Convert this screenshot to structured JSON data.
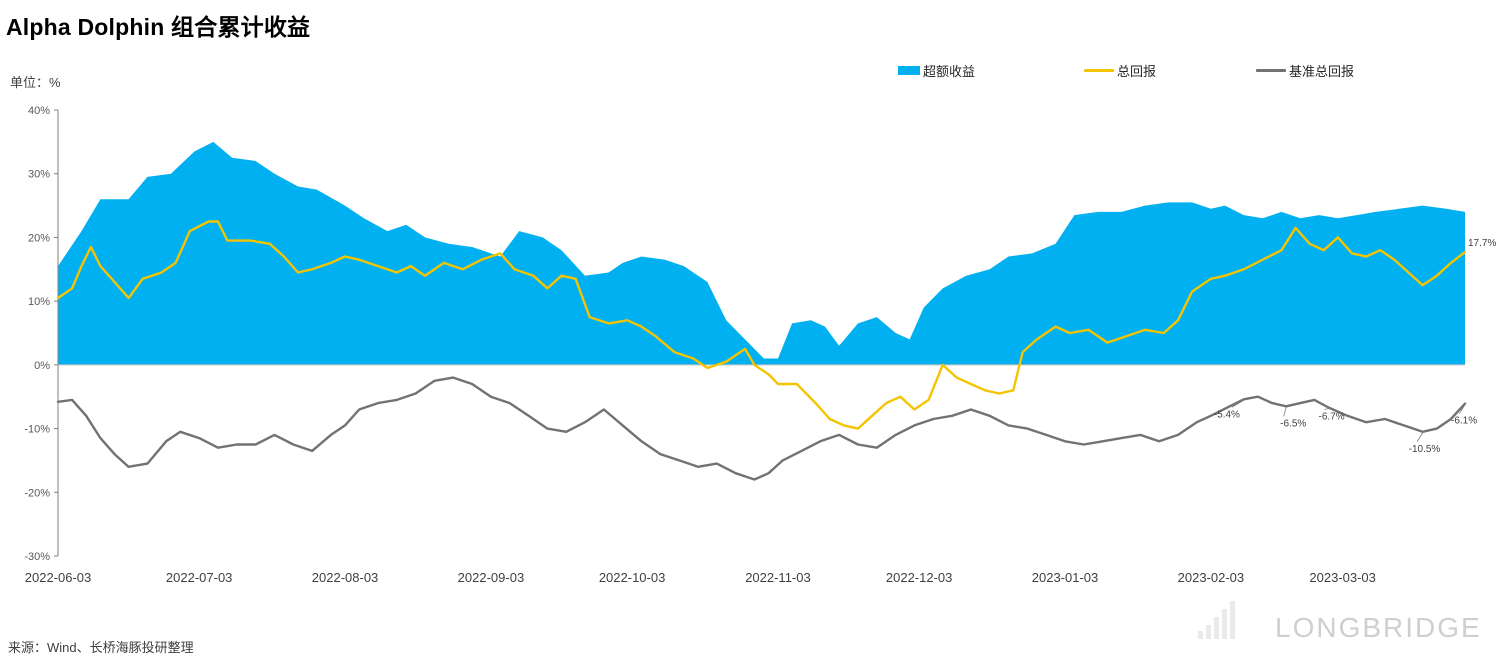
{
  "title": "Alpha Dolphin 组合累计收益",
  "unit_label": "单位：%",
  "source": "来源：Wind、长桥海豚投研整理",
  "watermark": {
    "brand": "LONGBRIDGE"
  },
  "legend": [
    {
      "label": "超额收益",
      "kind": "area",
      "color": "#00B0F0"
    },
    {
      "label": "总回报",
      "kind": "line",
      "color": "#F5C400"
    },
    {
      "label": "基准总回报",
      "kind": "line",
      "color": "#767171"
    }
  ],
  "chart_data": {
    "type": "line",
    "title": "Alpha Dolphin 组合累计收益",
    "xlabel": "",
    "ylabel": "单位：%",
    "ylim": [
      -30,
      40
    ],
    "y_ticks": [
      -30,
      -20,
      -10,
      0,
      10,
      20,
      30,
      40
    ],
    "y_tick_labels": [
      "-30%",
      "-20%",
      "-10%",
      "0%",
      "10%",
      "20%",
      "30%",
      "40%"
    ],
    "x_start": "2022-06-03",
    "x_end": "2023-03-29",
    "x_tick_labels": [
      "2022-06-03",
      "2022-07-03",
      "2022-08-03",
      "2022-09-03",
      "2022-10-03",
      "2022-11-03",
      "2022-12-03",
      "2023-01-03",
      "2023-02-03",
      "2023-03-03"
    ],
    "grid": false,
    "legend_position": "top-right",
    "series": [
      {
        "name": "超额收益",
        "kind": "area",
        "color": "#00B0F0",
        "points": [
          [
            "2022-06-03",
            15.5
          ],
          [
            "2022-06-08",
            21
          ],
          [
            "2022-06-12",
            26
          ],
          [
            "2022-06-18",
            26
          ],
          [
            "2022-06-22",
            29.5
          ],
          [
            "2022-06-27",
            30
          ],
          [
            "2022-07-02",
            33.5
          ],
          [
            "2022-07-06",
            35
          ],
          [
            "2022-07-10",
            32.5
          ],
          [
            "2022-07-15",
            32
          ],
          [
            "2022-07-19",
            30
          ],
          [
            "2022-07-24",
            28
          ],
          [
            "2022-07-28",
            27.5
          ],
          [
            "2022-08-03",
            25
          ],
          [
            "2022-08-07",
            23
          ],
          [
            "2022-08-12",
            21
          ],
          [
            "2022-08-16",
            22
          ],
          [
            "2022-08-20",
            20
          ],
          [
            "2022-08-25",
            19
          ],
          [
            "2022-08-30",
            18.5
          ],
          [
            "2022-09-05",
            17
          ],
          [
            "2022-09-09",
            21
          ],
          [
            "2022-09-14",
            20
          ],
          [
            "2022-09-18",
            18
          ],
          [
            "2022-09-23",
            14
          ],
          [
            "2022-09-28",
            14.5
          ],
          [
            "2022-10-01",
            16
          ],
          [
            "2022-10-05",
            17
          ],
          [
            "2022-10-10",
            16.5
          ],
          [
            "2022-10-14",
            15.5
          ],
          [
            "2022-10-19",
            13
          ],
          [
            "2022-10-23",
            7
          ],
          [
            "2022-10-27",
            4
          ],
          [
            "2022-10-31",
            1
          ],
          [
            "2022-11-03",
            1
          ],
          [
            "2022-11-06",
            6.5
          ],
          [
            "2022-11-10",
            7
          ],
          [
            "2022-11-13",
            6
          ],
          [
            "2022-11-16",
            3
          ],
          [
            "2022-11-20",
            6.5
          ],
          [
            "2022-11-24",
            7.5
          ],
          [
            "2022-11-28",
            5
          ],
          [
            "2022-12-01",
            4
          ],
          [
            "2022-12-04",
            9
          ],
          [
            "2022-12-08",
            12
          ],
          [
            "2022-12-13",
            14
          ],
          [
            "2022-12-18",
            15
          ],
          [
            "2022-12-22",
            17
          ],
          [
            "2022-12-27",
            17.5
          ],
          [
            "2023-01-01",
            19
          ],
          [
            "2023-01-05",
            23.5
          ],
          [
            "2023-01-10",
            24
          ],
          [
            "2023-01-15",
            24
          ],
          [
            "2023-01-20",
            25
          ],
          [
            "2023-01-25",
            25.5
          ],
          [
            "2023-01-30",
            25.5
          ],
          [
            "2023-02-03",
            24.5
          ],
          [
            "2023-02-06",
            25
          ],
          [
            "2023-02-10",
            23.5
          ],
          [
            "2023-02-14",
            23
          ],
          [
            "2023-02-18",
            24
          ],
          [
            "2023-02-22",
            23
          ],
          [
            "2023-02-26",
            23.5
          ],
          [
            "2023-03-02",
            23
          ],
          [
            "2023-03-06",
            23.5
          ],
          [
            "2023-03-10",
            24
          ],
          [
            "2023-03-15",
            24.5
          ],
          [
            "2023-03-20",
            25
          ],
          [
            "2023-03-25",
            24.5
          ],
          [
            "2023-03-29",
            24
          ]
        ]
      },
      {
        "name": "总回报",
        "kind": "line",
        "color": "#F5C400",
        "end_label": "17.7%",
        "points": [
          [
            "2022-06-03",
            10.5
          ],
          [
            "2022-06-06",
            12
          ],
          [
            "2022-06-08",
            15.5
          ],
          [
            "2022-06-10",
            18.5
          ],
          [
            "2022-06-12",
            15.5
          ],
          [
            "2022-06-15",
            13
          ],
          [
            "2022-06-18",
            10.5
          ],
          [
            "2022-06-21",
            13.5
          ],
          [
            "2022-06-25",
            14.5
          ],
          [
            "2022-06-28",
            16
          ],
          [
            "2022-07-01",
            21
          ],
          [
            "2022-07-05",
            22.5
          ],
          [
            "2022-07-07",
            22.5
          ],
          [
            "2022-07-09",
            19.5
          ],
          [
            "2022-07-14",
            19.5
          ],
          [
            "2022-07-18",
            19
          ],
          [
            "2022-07-21",
            17
          ],
          [
            "2022-07-24",
            14.5
          ],
          [
            "2022-07-27",
            15
          ],
          [
            "2022-07-31",
            16
          ],
          [
            "2022-08-03",
            17
          ],
          [
            "2022-08-06",
            16.5
          ],
          [
            "2022-08-10",
            15.5
          ],
          [
            "2022-08-14",
            14.5
          ],
          [
            "2022-08-17",
            15.5
          ],
          [
            "2022-08-20",
            14
          ],
          [
            "2022-08-24",
            16
          ],
          [
            "2022-08-28",
            15
          ],
          [
            "2022-09-01",
            16.5
          ],
          [
            "2022-09-05",
            17.5
          ],
          [
            "2022-09-08",
            15
          ],
          [
            "2022-09-12",
            14
          ],
          [
            "2022-09-15",
            12
          ],
          [
            "2022-09-18",
            14
          ],
          [
            "2022-09-21",
            13.5
          ],
          [
            "2022-09-24",
            7.5
          ],
          [
            "2022-09-28",
            6.5
          ],
          [
            "2022-10-02",
            7
          ],
          [
            "2022-10-05",
            6
          ],
          [
            "2022-10-08",
            4.5
          ],
          [
            "2022-10-12",
            2
          ],
          [
            "2022-10-16",
            1
          ],
          [
            "2022-10-19",
            -0.5
          ],
          [
            "2022-10-23",
            0.5
          ],
          [
            "2022-10-27",
            2.5
          ],
          [
            "2022-10-29",
            0
          ],
          [
            "2022-11-01",
            -1.5
          ],
          [
            "2022-11-03",
            -3
          ],
          [
            "2022-11-07",
            -3
          ],
          [
            "2022-11-11",
            -6
          ],
          [
            "2022-11-14",
            -8.5
          ],
          [
            "2022-11-17",
            -9.5
          ],
          [
            "2022-11-20",
            -10
          ],
          [
            "2022-11-23",
            -8
          ],
          [
            "2022-11-26",
            -6
          ],
          [
            "2022-11-29",
            -5
          ],
          [
            "2022-12-02",
            -7
          ],
          [
            "2022-12-05",
            -5.5
          ],
          [
            "2022-12-08",
            0
          ],
          [
            "2022-12-11",
            -2
          ],
          [
            "2022-12-14",
            -3
          ],
          [
            "2022-12-17",
            -4
          ],
          [
            "2022-12-20",
            -4.5
          ],
          [
            "2022-12-23",
            -4
          ],
          [
            "2022-12-25",
            2
          ],
          [
            "2022-12-28",
            4
          ],
          [
            "2023-01-01",
            6
          ],
          [
            "2023-01-04",
            5
          ],
          [
            "2023-01-08",
            5.5
          ],
          [
            "2023-01-12",
            3.5
          ],
          [
            "2023-01-16",
            4.5
          ],
          [
            "2023-01-20",
            5.5
          ],
          [
            "2023-01-24",
            5
          ],
          [
            "2023-01-27",
            7
          ],
          [
            "2023-01-30",
            11.5
          ],
          [
            "2023-02-03",
            13.5
          ],
          [
            "2023-02-06",
            14
          ],
          [
            "2023-02-10",
            15
          ],
          [
            "2023-02-14",
            16.5
          ],
          [
            "2023-02-18",
            18
          ],
          [
            "2023-02-21",
            21.5
          ],
          [
            "2023-02-24",
            19
          ],
          [
            "2023-02-27",
            18
          ],
          [
            "2023-03-02",
            20
          ],
          [
            "2023-03-05",
            17.5
          ],
          [
            "2023-03-08",
            17
          ],
          [
            "2023-03-11",
            18
          ],
          [
            "2023-03-14",
            16.5
          ],
          [
            "2023-03-17",
            14.5
          ],
          [
            "2023-03-20",
            12.5
          ],
          [
            "2023-03-23",
            14
          ],
          [
            "2023-03-26",
            16
          ],
          [
            "2023-03-29",
            17.7
          ]
        ]
      },
      {
        "name": "基准总回报",
        "kind": "line",
        "color": "#767171",
        "points": [
          [
            "2022-06-03",
            -5.8
          ],
          [
            "2022-06-06",
            -5.5
          ],
          [
            "2022-06-09",
            -8
          ],
          [
            "2022-06-12",
            -11.5
          ],
          [
            "2022-06-15",
            -14
          ],
          [
            "2022-06-18",
            -16
          ],
          [
            "2022-06-22",
            -15.5
          ],
          [
            "2022-06-26",
            -12
          ],
          [
            "2022-06-29",
            -10.5
          ],
          [
            "2022-07-03",
            -11.5
          ],
          [
            "2022-07-07",
            -13
          ],
          [
            "2022-07-11",
            -12.5
          ],
          [
            "2022-07-15",
            -12.5
          ],
          [
            "2022-07-19",
            -11
          ],
          [
            "2022-07-23",
            -12.5
          ],
          [
            "2022-07-27",
            -13.5
          ],
          [
            "2022-07-31",
            -11
          ],
          [
            "2022-08-03",
            -9.5
          ],
          [
            "2022-08-06",
            -7
          ],
          [
            "2022-08-10",
            -6
          ],
          [
            "2022-08-14",
            -5.5
          ],
          [
            "2022-08-18",
            -4.5
          ],
          [
            "2022-08-22",
            -2.5
          ],
          [
            "2022-08-26",
            -2
          ],
          [
            "2022-08-30",
            -3
          ],
          [
            "2022-09-03",
            -5
          ],
          [
            "2022-09-07",
            -6
          ],
          [
            "2022-09-11",
            -8
          ],
          [
            "2022-09-15",
            -10
          ],
          [
            "2022-09-19",
            -10.5
          ],
          [
            "2022-09-23",
            -9
          ],
          [
            "2022-09-27",
            -7
          ],
          [
            "2022-10-01",
            -9.5
          ],
          [
            "2022-10-05",
            -12
          ],
          [
            "2022-10-09",
            -14
          ],
          [
            "2022-10-13",
            -15
          ],
          [
            "2022-10-17",
            -16
          ],
          [
            "2022-10-21",
            -15.5
          ],
          [
            "2022-10-25",
            -17
          ],
          [
            "2022-10-29",
            -18
          ],
          [
            "2022-11-01",
            -17
          ],
          [
            "2022-11-04",
            -15
          ],
          [
            "2022-11-08",
            -13.5
          ],
          [
            "2022-11-12",
            -12
          ],
          [
            "2022-11-16",
            -11
          ],
          [
            "2022-11-20",
            -12.5
          ],
          [
            "2022-11-24",
            -13
          ],
          [
            "2022-11-28",
            -11
          ],
          [
            "2022-12-02",
            -9.5
          ],
          [
            "2022-12-06",
            -8.5
          ],
          [
            "2022-12-10",
            -8
          ],
          [
            "2022-12-14",
            -7
          ],
          [
            "2022-12-18",
            -8
          ],
          [
            "2022-12-22",
            -9.5
          ],
          [
            "2022-12-26",
            -10
          ],
          [
            "2022-12-30",
            -11
          ],
          [
            "2023-01-03",
            -12
          ],
          [
            "2023-01-07",
            -12.5
          ],
          [
            "2023-01-11",
            -12
          ],
          [
            "2023-01-15",
            -11.5
          ],
          [
            "2023-01-19",
            -11
          ],
          [
            "2023-01-23",
            -12
          ],
          [
            "2023-01-27",
            -11
          ],
          [
            "2023-01-31",
            -9
          ],
          [
            "2023-02-03",
            -8
          ],
          [
            "2023-02-07",
            -6.5
          ],
          [
            "2023-02-10",
            -5.4
          ],
          [
            "2023-02-13",
            -5
          ],
          [
            "2023-02-16",
            -6
          ],
          [
            "2023-02-19",
            -6.5
          ],
          [
            "2023-02-22",
            -6
          ],
          [
            "2023-02-25",
            -5.5
          ],
          [
            "2023-02-28",
            -6.7
          ],
          [
            "2023-03-04",
            -8
          ],
          [
            "2023-03-08",
            -9
          ],
          [
            "2023-03-12",
            -8.5
          ],
          [
            "2023-03-16",
            -9.5
          ],
          [
            "2023-03-20",
            -10.5
          ],
          [
            "2023-03-23",
            -10
          ],
          [
            "2023-03-26",
            -8.5
          ],
          [
            "2023-03-29",
            -6.1
          ]
        ]
      }
    ],
    "annotations": [
      {
        "date": "2023-02-10",
        "value": -5.4,
        "text": "-5.4%"
      },
      {
        "date": "2023-02-19",
        "value": -6.5,
        "text": "-6.5%"
      },
      {
        "date": "2023-02-28",
        "value": -6.7,
        "text": "-6.7%"
      },
      {
        "date": "2023-03-20",
        "value": -10.5,
        "text": "-10.5%"
      },
      {
        "date": "2023-03-29",
        "value": -6.1,
        "text": "-6.1%"
      }
    ]
  }
}
